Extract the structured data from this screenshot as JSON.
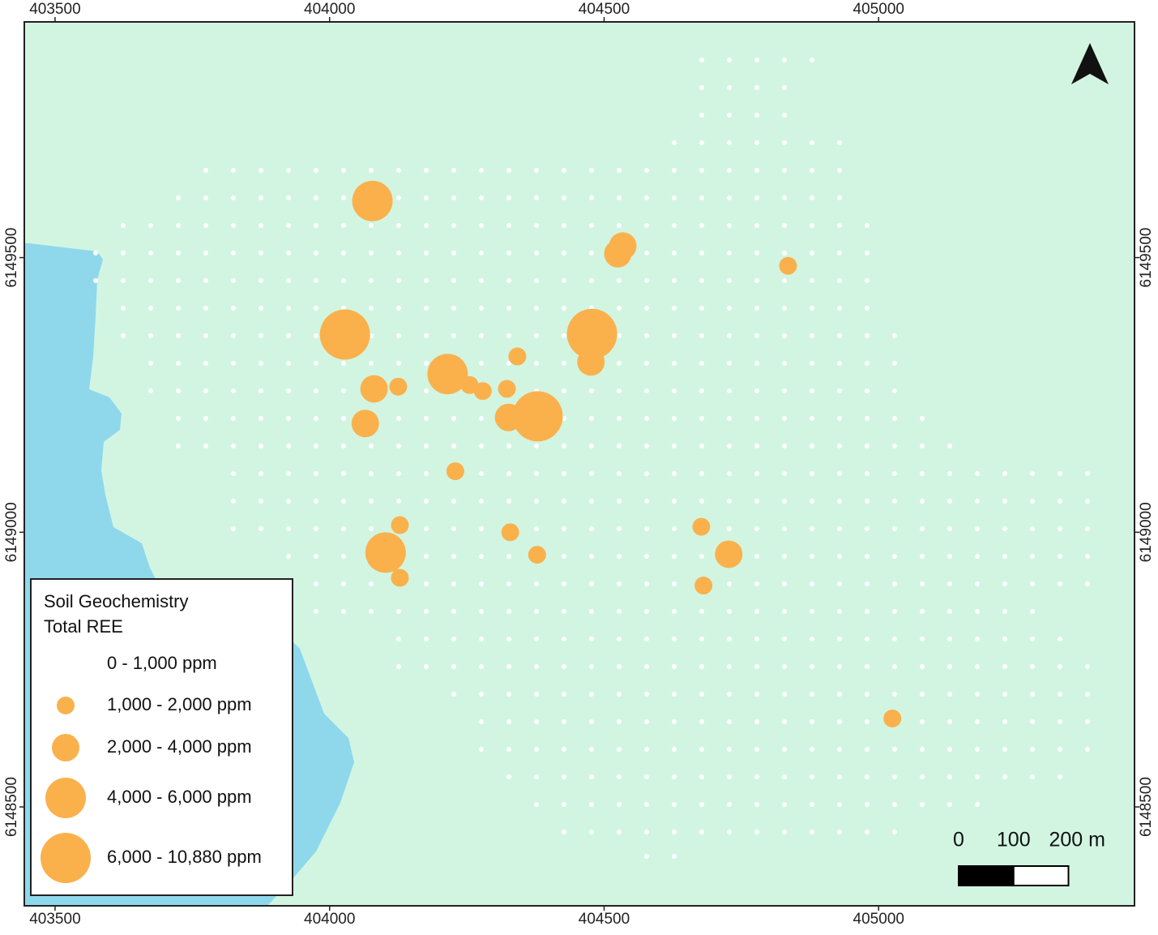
{
  "map": {
    "xlim": [
      403444,
      405466
    ],
    "ylim": [
      6148320,
      6149929
    ],
    "xticks": [
      403500,
      404000,
      404500,
      405000
    ],
    "yticks": [
      6148500,
      6149000,
      6149500
    ],
    "color": "#fab14c",
    "legend": {
      "title": [
        "Soil Geochemistry",
        "Total REE"
      ],
      "classes": [
        "0 - 1,000 ppm",
        "1,000 - 2,000 ppm",
        "2,000 - 4,000 ppm",
        "4,000 - 6,000 ppm",
        "6,000 - 10,880 ppm"
      ]
    },
    "scale_bar": {
      "ticks": [
        0,
        100,
        {
          "value": 200,
          "label": "200 m"
        }
      ]
    },
    "samples": [
      {
        "x": 404078,
        "y": 6149603,
        "class": 3
      },
      {
        "x": 404028,
        "y": 6149360,
        "class": 4
      },
      {
        "x": 404478,
        "y": 6149361,
        "class": 4
      },
      {
        "x": 404476,
        "y": 6149310,
        "class": 2
      },
      {
        "x": 404534,
        "y": 6149521,
        "class": 2
      },
      {
        "x": 404525,
        "y": 6149507,
        "class": 2
      },
      {
        "x": 404835,
        "y": 6149485,
        "class": 1
      },
      {
        "x": 404342,
        "y": 6149320,
        "class": 1
      },
      {
        "x": 404215,
        "y": 6149288,
        "class": 3
      },
      {
        "x": 404226,
        "y": 6149302,
        "class": 1
      },
      {
        "x": 404255,
        "y": 6149268,
        "class": 1
      },
      {
        "x": 404279,
        "y": 6149257,
        "class": 1
      },
      {
        "x": 404081,
        "y": 6149261,
        "class": 2
      },
      {
        "x": 404125,
        "y": 6149265,
        "class": 1
      },
      {
        "x": 404323,
        "y": 6149261,
        "class": 1
      },
      {
        "x": 404065,
        "y": 6149198,
        "class": 2
      },
      {
        "x": 404379,
        "y": 6149211,
        "class": 4
      },
      {
        "x": 404326,
        "y": 6149209,
        "class": 2
      },
      {
        "x": 404229,
        "y": 6149111,
        "class": 1
      },
      {
        "x": 404128,
        "y": 6149013,
        "class": 1
      },
      {
        "x": 404102,
        "y": 6148963,
        "class": 3
      },
      {
        "x": 404128,
        "y": 6148917,
        "class": 1
      },
      {
        "x": 404329,
        "y": 6149000,
        "class": 1
      },
      {
        "x": 404378,
        "y": 6148959,
        "class": 1
      },
      {
        "x": 404677,
        "y": 6149010,
        "class": 1
      },
      {
        "x": 404727,
        "y": 6148960,
        "class": 2
      },
      {
        "x": 404681,
        "y": 6148903,
        "class": 1
      },
      {
        "x": 405025,
        "y": 6148661,
        "class": 1
      }
    ]
  }
}
